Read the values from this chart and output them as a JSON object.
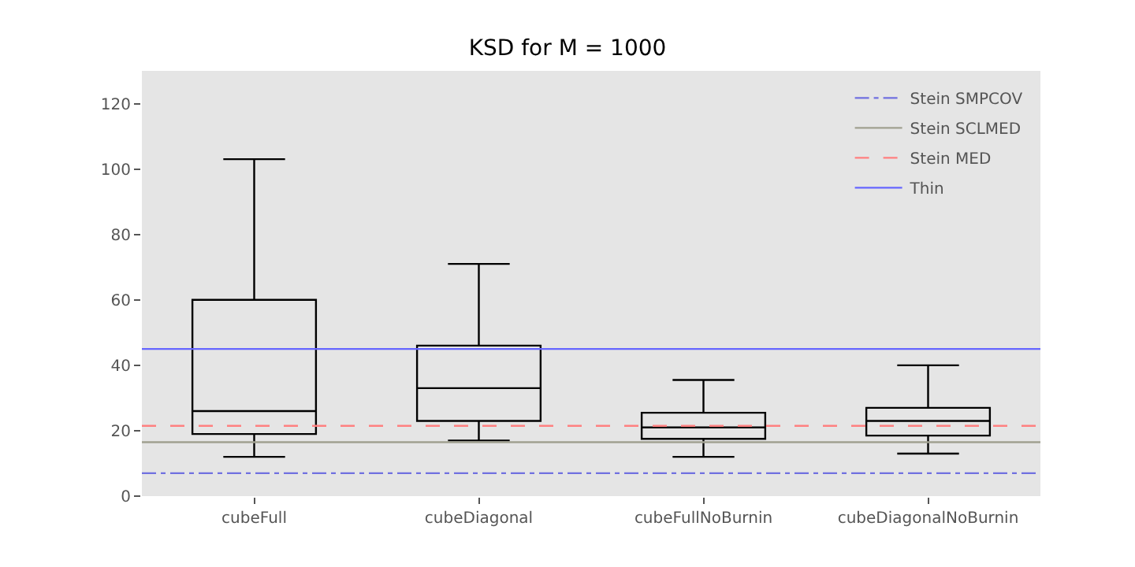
{
  "chart_data": {
    "type": "box",
    "title": "KSD for M = 1000",
    "categories": [
      "cubeFull",
      "cubeDiagonal",
      "cubeFullNoBurnin",
      "cubeDiagonalNoBurnin"
    ],
    "boxes": [
      {
        "low": 12,
        "q1": 19,
        "median": 26,
        "q3": 60,
        "high": 103
      },
      {
        "low": 17,
        "q1": 23,
        "median": 33,
        "q3": 46,
        "high": 71
      },
      {
        "low": 12,
        "q1": 17.5,
        "median": 21,
        "q3": 25.5,
        "high": 35.5
      },
      {
        "low": 13,
        "q1": 18.5,
        "median": 23,
        "q3": 27,
        "high": 40
      }
    ],
    "color": "#000000",
    "ylim": [
      0,
      130
    ],
    "yticks": [
      0,
      20,
      40,
      60,
      80,
      100,
      120
    ],
    "ref_lines": [
      {
        "axis": "y",
        "value": 7,
        "label": "Stein SMPCOV",
        "color": "#7070e0",
        "line_style": "dashdot"
      },
      {
        "axis": "y",
        "value": 16.5,
        "label": "Stein SCLMED",
        "color": "#a0a090",
        "line_style": "solid"
      },
      {
        "axis": "y",
        "value": 21.5,
        "label": "Stein MED",
        "color": "#ff8080",
        "line_style": "dashed"
      },
      {
        "axis": "y",
        "value": 45,
        "label": "Thin",
        "color": "#6666ff",
        "line_style": "solid"
      }
    ],
    "grid": false,
    "legend": "top right"
  }
}
